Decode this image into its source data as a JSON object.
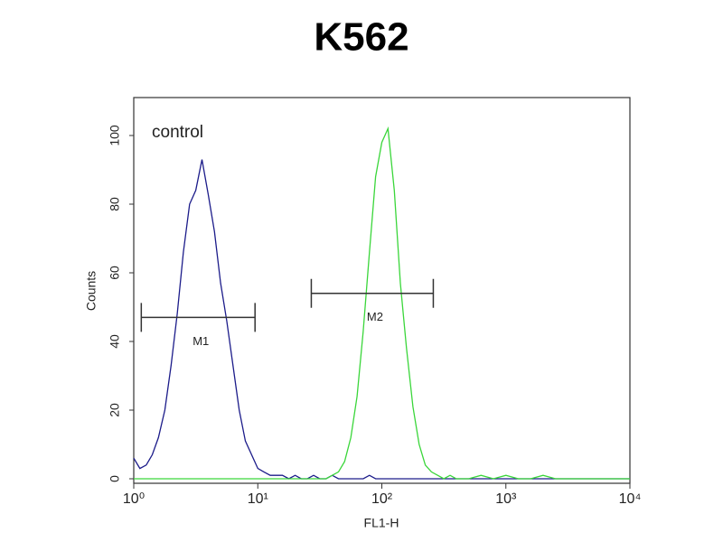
{
  "chart_data": {
    "type": "histogram-overlay",
    "title": "K562",
    "x_label": "FL1-H",
    "y_label": "Counts",
    "annotation": "control",
    "log_x": true,
    "xlim": [
      1,
      10000
    ],
    "xticks": [
      {
        "value": 1,
        "label": "10⁰"
      },
      {
        "value": 10,
        "label": "10¹"
      },
      {
        "value": 100,
        "label": "10²"
      },
      {
        "value": 1000,
        "label": "10³"
      },
      {
        "value": 10000,
        "label": "10⁴"
      }
    ],
    "ylim": [
      0,
      110
    ],
    "yticks": [
      0,
      20,
      40,
      60,
      80,
      100
    ],
    "x": [
      1,
      1.12,
      1.26,
      1.41,
      1.58,
      1.78,
      2,
      2.24,
      2.51,
      2.82,
      3.16,
      3.55,
      3.98,
      4.47,
      5.01,
      5.62,
      6.31,
      7.08,
      7.94,
      8.91,
      10,
      11.2,
      12.6,
      14.1,
      15.8,
      17.8,
      20,
      22.4,
      25.1,
      28.2,
      31.6,
      35.5,
      39.8,
      44.7,
      50.1,
      56.2,
      63.1,
      70.8,
      79.4,
      89.1,
      100,
      112,
      126,
      141,
      158,
      178,
      200,
      224,
      251,
      282,
      316,
      355,
      398,
      501,
      631,
      794,
      1000,
      1259,
      1585,
      1995,
      2512,
      3162,
      3981,
      5012,
      6310,
      7943,
      10000
    ],
    "series": [
      {
        "color": "#1c1c8a",
        "values": [
          6,
          3,
          4,
          7,
          12,
          20,
          33,
          48,
          66,
          80,
          84,
          93,
          83,
          72,
          57,
          46,
          33,
          20,
          11,
          7,
          3,
          2,
          1,
          1,
          1,
          0,
          1,
          0,
          0,
          1,
          0,
          0,
          1,
          0,
          0,
          0,
          0,
          0,
          1,
          0,
          0,
          0,
          0,
          0,
          0,
          0,
          0,
          0,
          0,
          0,
          0,
          0,
          0,
          0,
          0,
          0,
          0,
          0,
          0,
          0,
          0,
          0,
          0,
          0,
          0,
          0,
          0
        ]
      },
      {
        "color": "#3ad63a",
        "values": [
          0,
          0,
          0,
          0,
          0,
          0,
          0,
          0,
          0,
          0,
          0,
          0,
          0,
          0,
          0,
          0,
          0,
          0,
          0,
          0,
          0,
          0,
          0,
          0,
          0,
          0,
          0,
          0,
          0,
          0,
          0,
          0,
          1,
          2,
          5,
          12,
          24,
          43,
          66,
          88,
          98,
          102,
          84,
          57,
          38,
          21,
          10,
          4,
          2,
          1,
          0,
          1,
          0,
          0,
          1,
          0,
          1,
          0,
          0,
          1,
          0,
          0,
          0,
          0,
          0,
          0,
          0
        ]
      }
    ],
    "markers": [
      {
        "label": "M1",
        "x": [
          1.15,
          9.5
        ],
        "y": 47
      },
      {
        "label": "M2",
        "x": [
          27,
          260
        ],
        "y": 54
      }
    ]
  }
}
